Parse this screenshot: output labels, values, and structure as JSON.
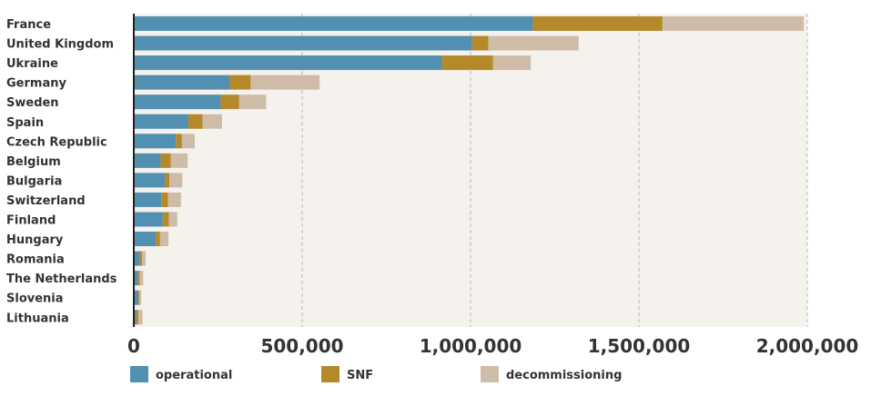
{
  "chart_data": {
    "type": "bar",
    "orientation": "horizontal",
    "stacked": true,
    "categories": [
      "France",
      "United Kingdom",
      "Ukraine",
      "Germany",
      "Sweden",
      "Spain",
      "Czech Republic",
      "Belgium",
      "Bulgaria",
      "Switzerland",
      "Finland",
      "Hungary",
      "Romania",
      "The Netherlands",
      "Slovenia",
      "Lithuania"
    ],
    "series": [
      {
        "name": "operational",
        "color": "#5290b2",
        "values": [
          1185000,
          1005000,
          915000,
          285000,
          258000,
          162000,
          125000,
          80000,
          92000,
          82000,
          86000,
          65000,
          18000,
          13000,
          14000,
          7000
        ]
      },
      {
        "name": "SNF",
        "color": "#b5892a",
        "values": [
          385000,
          48000,
          152000,
          62000,
          55000,
          42000,
          18000,
          30000,
          14000,
          20000,
          18000,
          13000,
          7000,
          5000,
          3000,
          7000
        ]
      },
      {
        "name": "decommissioning",
        "color": "#cfbca8",
        "values": [
          420000,
          268000,
          112000,
          205000,
          80000,
          58000,
          38000,
          50000,
          38000,
          38000,
          25000,
          25000,
          10000,
          10000,
          5000,
          12000
        ]
      }
    ],
    "xlim": [
      0,
      2000000
    ],
    "xticks": [
      0,
      500000,
      1000000,
      1500000,
      2000000
    ],
    "xtick_labels": [
      "0",
      "500,000",
      "1,000,000",
      "1,500,000",
      "2,000,000"
    ],
    "grid": "vertical-dashed",
    "legend": "bottom",
    "plot_background": "#f5f2ed"
  }
}
